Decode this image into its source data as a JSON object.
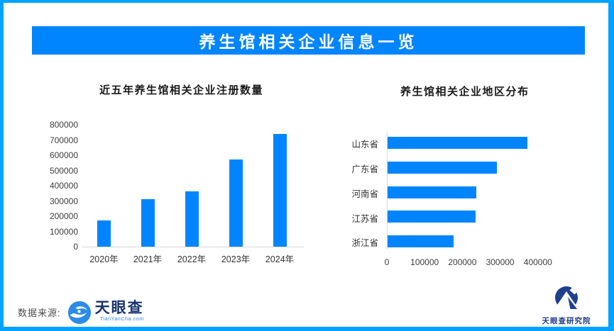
{
  "page": {
    "title": "养生馆相关企业信息一览"
  },
  "colors": {
    "banner": "#0085ff",
    "bar": "#0085ff",
    "frame": "#00a3ff",
    "tyc_navy": "#17336f",
    "institute_navy": "#1e3c85"
  },
  "chart_data": [
    {
      "type": "bar",
      "title": "近五年养生馆相关企业注册数量",
      "categories": [
        "2020年",
        "2021年",
        "2022年",
        "2023年",
        "2024年"
      ],
      "values": [
        170000,
        310000,
        365000,
        570000,
        740000
      ],
      "xlabel": "",
      "ylabel": "",
      "ylim": [
        0,
        800000
      ],
      "yticks": [
        0,
        100000,
        200000,
        300000,
        400000,
        500000,
        600000,
        700000,
        800000
      ],
      "grid": false,
      "legend": "none",
      "bar_color": "#0085ff"
    },
    {
      "type": "bar_horizontal",
      "title": "养生馆相关企业地区分布",
      "categories": [
        "山东省",
        "广东省",
        "河南省",
        "江苏省",
        "浙江省"
      ],
      "values": [
        370000,
        290000,
        235000,
        233000,
        175000
      ],
      "xlabel": "",
      "ylabel": "",
      "xlim": [
        0,
        450000
      ],
      "xticks": [
        0,
        100000,
        200000,
        300000,
        400000
      ],
      "grid": false,
      "legend": "none",
      "bar_color": "#0085ff"
    }
  ],
  "footer": {
    "source_label": "数据来源:",
    "tianyancha_name": "天眼查",
    "tianyancha_domain": "TianYanCha.com",
    "institute_name": "天眼查研究院"
  }
}
